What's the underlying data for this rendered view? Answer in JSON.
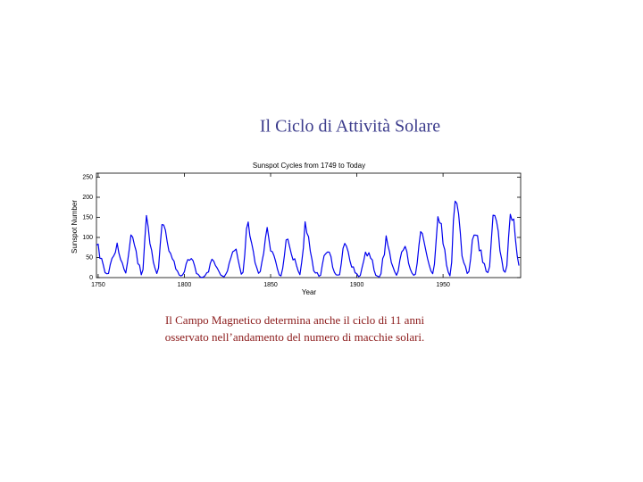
{
  "slide": {
    "title": "Il Ciclo di Attività Solare",
    "caption": [
      "Il Campo Magnetico determina anche il ciclo di 11 anni",
      "osservato nell’andamento del numero di macchie solari."
    ]
  },
  "chart_data": {
    "type": "line",
    "title": "Sunspot Cycles from 1749 to Today",
    "x_label": "Year",
    "y_label": "Sunspot Number",
    "color": "#0000ee",
    "xlim": [
      1749,
      1995
    ],
    "xticks": [
      1750,
      1800,
      1850,
      1900,
      1950
    ],
    "ylim": [
      0,
      260
    ],
    "yticks": [
      0,
      50,
      100,
      150,
      200,
      250
    ],
    "x": [
      1749,
      1750,
      1751,
      1752,
      1753,
      1754,
      1755,
      1756,
      1757,
      1758,
      1759,
      1760,
      1761,
      1762,
      1763,
      1764,
      1765,
      1766,
      1767,
      1768,
      1769,
      1770,
      1771,
      1772,
      1773,
      1774,
      1775,
      1776,
      1777,
      1778,
      1779,
      1780,
      1781,
      1782,
      1783,
      1784,
      1785,
      1786,
      1787,
      1788,
      1789,
      1790,
      1791,
      1792,
      1793,
      1794,
      1795,
      1796,
      1797,
      1798,
      1799,
      1800,
      1801,
      1802,
      1803,
      1804,
      1805,
      1806,
      1807,
      1808,
      1809,
      1810,
      1811,
      1812,
      1813,
      1814,
      1815,
      1816,
      1817,
      1818,
      1819,
      1820,
      1821,
      1822,
      1823,
      1824,
      1825,
      1826,
      1827,
      1828,
      1829,
      1830,
      1831,
      1832,
      1833,
      1834,
      1835,
      1836,
      1837,
      1838,
      1839,
      1840,
      1841,
      1842,
      1843,
      1844,
      1845,
      1846,
      1847,
      1848,
      1849,
      1850,
      1851,
      1852,
      1853,
      1854,
      1855,
      1856,
      1857,
      1858,
      1859,
      1860,
      1861,
      1862,
      1863,
      1864,
      1865,
      1866,
      1867,
      1868,
      1869,
      1870,
      1871,
      1872,
      1873,
      1874,
      1875,
      1876,
      1877,
      1878,
      1879,
      1880,
      1881,
      1882,
      1883,
      1884,
      1885,
      1886,
      1887,
      1888,
      1889,
      1890,
      1891,
      1892,
      1893,
      1894,
      1895,
      1896,
      1897,
      1898,
      1899,
      1900,
      1901,
      1902,
      1903,
      1904,
      1905,
      1906,
      1907,
      1908,
      1909,
      1910,
      1911,
      1912,
      1913,
      1914,
      1915,
      1916,
      1917,
      1918,
      1919,
      1920,
      1921,
      1922,
      1923,
      1924,
      1925,
      1926,
      1927,
      1928,
      1929,
      1930,
      1931,
      1932,
      1933,
      1934,
      1935,
      1936,
      1937,
      1938,
      1939,
      1940,
      1941,
      1942,
      1943,
      1944,
      1945,
      1946,
      1947,
      1948,
      1949,
      1950,
      1951,
      1952,
      1953,
      1954,
      1955,
      1956,
      1957,
      1958,
      1959,
      1960,
      1961,
      1962,
      1963,
      1964,
      1965,
      1966,
      1967,
      1968,
      1969,
      1970,
      1971,
      1972,
      1973,
      1974,
      1975,
      1976,
      1977,
      1978,
      1979,
      1980,
      1981,
      1982,
      1983,
      1984,
      1985,
      1986,
      1987,
      1988,
      1989,
      1990,
      1991,
      1992,
      1993,
      1994
    ],
    "values": [
      80.9,
      83.4,
      47.7,
      47.8,
      30.7,
      12.2,
      9.6,
      10.2,
      32.4,
      47.6,
      54.0,
      62.9,
      85.9,
      61.2,
      45.1,
      36.4,
      20.9,
      11.4,
      37.8,
      69.8,
      106.1,
      100.8,
      81.6,
      66.5,
      34.8,
      30.6,
      7.0,
      19.8,
      92.5,
      154.4,
      125.9,
      84.8,
      68.1,
      38.5,
      22.8,
      10.2,
      24.1,
      82.9,
      132.0,
      130.9,
      118.1,
      89.9,
      66.6,
      60.0,
      46.9,
      41.0,
      21.3,
      16.0,
      6.4,
      4.1,
      6.8,
      14.5,
      34.0,
      45.0,
      43.1,
      47.5,
      42.2,
      28.1,
      10.1,
      8.1,
      2.5,
      0.0,
      1.4,
      5.0,
      12.2,
      13.9,
      35.4,
      45.8,
      41.1,
      30.1,
      23.9,
      15.6,
      6.6,
      4.0,
      1.8,
      8.5,
      16.6,
      36.3,
      49.6,
      64.2,
      67.0,
      70.9,
      47.8,
      27.5,
      8.5,
      13.2,
      56.9,
      121.5,
      138.3,
      103.2,
      85.7,
      64.6,
      36.7,
      24.2,
      10.7,
      15.0,
      40.1,
      61.5,
      98.5,
      124.7,
      96.3,
      66.6,
      64.5,
      54.1,
      39.0,
      20.6,
      6.7,
      4.3,
      22.7,
      54.8,
      93.8,
      95.8,
      77.2,
      59.1,
      44.0,
      47.0,
      30.5,
      16.3,
      7.3,
      37.6,
      74.0,
      139.0,
      111.2,
      101.6,
      66.2,
      44.7,
      17.0,
      11.3,
      12.4,
      3.4,
      6.0,
      32.3,
      54.3,
      59.7,
      63.7,
      63.5,
      52.2,
      25.4,
      13.1,
      6.8,
      6.3,
      7.1,
      35.6,
      73.0,
      85.1,
      78.0,
      64.0,
      41.8,
      26.2,
      26.7,
      12.1,
      9.5,
      2.7,
      5.0,
      24.4,
      42.0,
      63.5,
      53.8,
      62.0,
      48.5,
      43.9,
      18.6,
      5.7,
      3.6,
      1.4,
      9.6,
      47.4,
      57.1,
      103.9,
      80.6,
      63.6,
      37.6,
      26.1,
      14.2,
      5.8,
      16.7,
      44.3,
      63.9,
      69.0,
      77.8,
      64.9,
      35.7,
      21.2,
      11.1,
      5.7,
      8.7,
      36.1,
      79.7,
      114.4,
      109.6,
      88.8,
      67.8,
      47.5,
      30.6,
      16.3,
      9.6,
      33.2,
      92.6,
      151.6,
      136.3,
      134.7,
      83.9,
      69.4,
      31.5,
      13.9,
      4.4,
      38.0,
      141.7,
      190.2,
      184.8,
      159.0,
      112.3,
      53.9,
      37.6,
      27.9,
      10.2,
      15.1,
      47.0,
      93.8,
      105.9,
      105.5,
      104.5,
      66.6,
      68.9,
      38.0,
      34.5,
      15.5,
      12.6,
      27.5,
      92.5,
      155.4,
      154.6,
      140.4,
      115.9,
      66.6,
      45.9,
      17.9,
      13.4,
      29.4,
      100.2,
      157.6,
      142.6,
      145.7,
      94.3,
      54.6,
      29.9
    ]
  }
}
